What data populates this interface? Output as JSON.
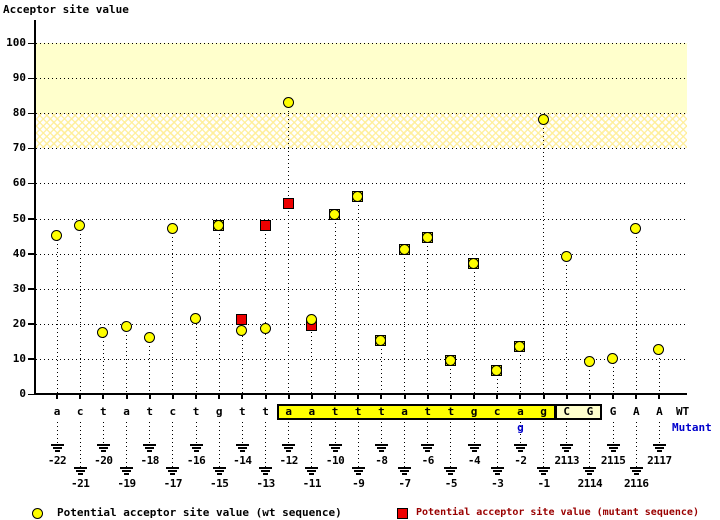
{
  "title": "Acceptor site value",
  "row_labels": {
    "wt": "WT",
    "mutant": "Mutant"
  },
  "mutation": {
    "index": 20,
    "base": "g"
  },
  "legend": {
    "wt": "Potential acceptor site value (wt sequence)",
    "mutant": "Potential acceptor site value (mutant sequence)"
  },
  "colors": {
    "wt_fill": "#FFFF00",
    "mutant_fill": "#EE0000",
    "band_solid": "#FFFFCC",
    "intron_box_fill": "#FFFF00",
    "exon_box_fill": "#FFFFCC",
    "mutant_text_blue": "#0000CC",
    "legend_mutant_text": "#990000"
  },
  "y_axis": {
    "label": "Acceptor site value",
    "min": 0,
    "max": 100,
    "step": 10,
    "band_solid": [
      80,
      100
    ],
    "band_hatch": [
      70,
      80
    ]
  },
  "chart_data": {
    "type": "scatter",
    "title": "Acceptor site value",
    "ylabel": "Acceptor site value",
    "ylim": [
      0,
      100
    ],
    "grid": "dotted horizontal every 10",
    "legend_position": "bottom",
    "series_info": [
      {
        "name": "Potential acceptor site value (wt sequence)",
        "marker": "yellow circle"
      },
      {
        "name": "Potential acceptor site value (mutant sequence)",
        "marker": "red square"
      }
    ],
    "points": [
      {
        "base": "a",
        "pos": "-22",
        "wt": 45,
        "mut": null,
        "box": null
      },
      {
        "base": "c",
        "pos": "-21",
        "wt": 48,
        "mut": null,
        "box": null
      },
      {
        "base": "t",
        "pos": "-20",
        "wt": 17.5,
        "mut": null,
        "box": null
      },
      {
        "base": "a",
        "pos": "-19",
        "wt": 19,
        "mut": null,
        "box": null
      },
      {
        "base": "t",
        "pos": "-18",
        "wt": 16,
        "mut": null,
        "box": null
      },
      {
        "base": "c",
        "pos": "-17",
        "wt": 47,
        "mut": null,
        "box": null
      },
      {
        "base": "t",
        "pos": "-16",
        "wt": 21.5,
        "mut": null,
        "box": null
      },
      {
        "base": "g",
        "pos": "-15",
        "wt": 48,
        "mut": 48,
        "box": null
      },
      {
        "base": "t",
        "pos": "-14",
        "wt": 18,
        "mut": 21,
        "box": null
      },
      {
        "base": "t",
        "pos": "-13",
        "wt": 18.5,
        "mut": 48,
        "box": null
      },
      {
        "base": "a",
        "pos": "-12",
        "wt": 83,
        "mut": 54,
        "box": "intron"
      },
      {
        "base": "a",
        "pos": "-11",
        "wt": 21,
        "mut": 19.5,
        "box": "intron"
      },
      {
        "base": "t",
        "pos": "-10",
        "wt": 51,
        "mut": 51,
        "box": "intron"
      },
      {
        "base": "t",
        "pos": "-9",
        "wt": 56,
        "mut": 56,
        "box": "intron"
      },
      {
        "base": "t",
        "pos": "-8",
        "wt": 15,
        "mut": 15,
        "box": "intron"
      },
      {
        "base": "a",
        "pos": "-7",
        "wt": 41,
        "mut": 41,
        "box": "intron"
      },
      {
        "base": "t",
        "pos": "-6",
        "wt": 44.5,
        "mut": 44.5,
        "box": "intron"
      },
      {
        "base": "t",
        "pos": "-5",
        "wt": 9.5,
        "mut": 9.5,
        "box": "intron"
      },
      {
        "base": "g",
        "pos": "-4",
        "wt": 37,
        "mut": 37,
        "box": "intron"
      },
      {
        "base": "c",
        "pos": "-3",
        "wt": 6.5,
        "mut": 6.5,
        "box": "intron"
      },
      {
        "base": "a",
        "pos": "-2",
        "wt": 13.5,
        "mut": 13.5,
        "box": "intron"
      },
      {
        "base": "g",
        "pos": "-1",
        "wt": 78,
        "mut": null,
        "box": "intron"
      },
      {
        "base": "C",
        "pos": "2113",
        "wt": 39,
        "mut": null,
        "box": "exon"
      },
      {
        "base": "G",
        "pos": "2114",
        "wt": 9,
        "mut": null,
        "box": "exon"
      },
      {
        "base": "G",
        "pos": "2115",
        "wt": 10,
        "mut": null,
        "box": null
      },
      {
        "base": "A",
        "pos": "2116",
        "wt": 47,
        "mut": null,
        "box": null
      },
      {
        "base": "A",
        "pos": "2117",
        "wt": 12.5,
        "mut": null,
        "box": null
      }
    ]
  }
}
